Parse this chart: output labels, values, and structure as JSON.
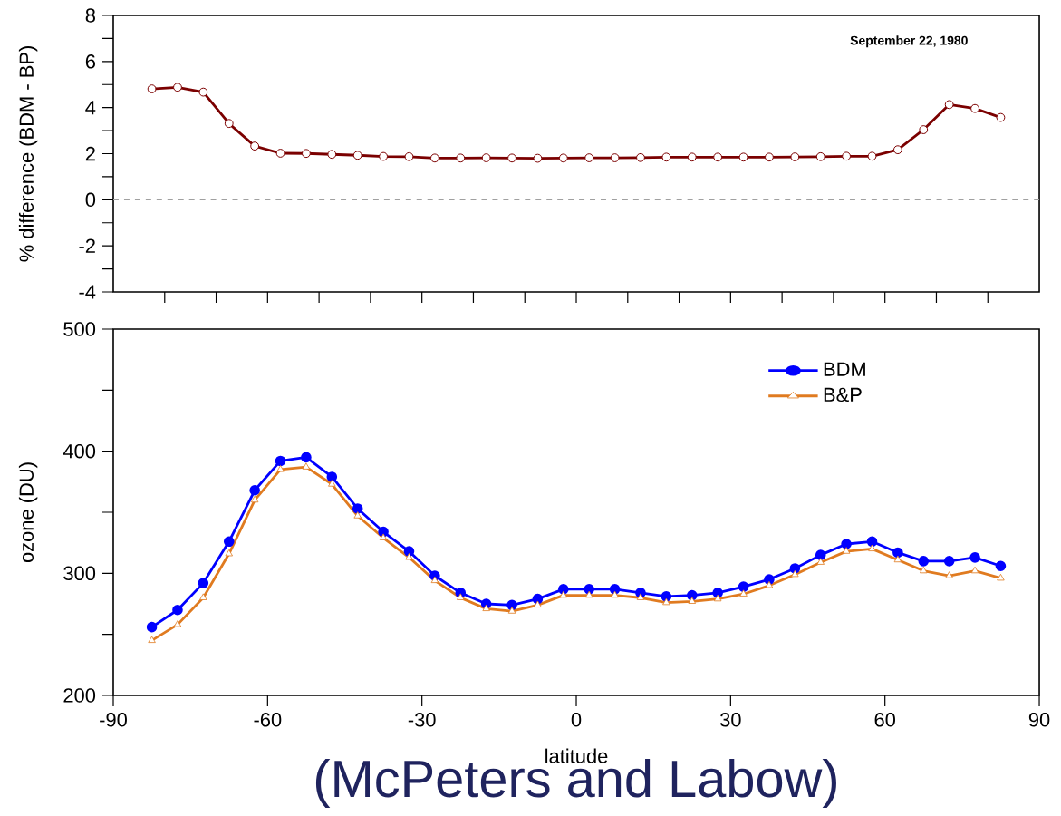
{
  "chart_data": [
    {
      "type": "line",
      "ylabel": "% difference (BDM - BP)",
      "annotations": [
        "September 22, 1980"
      ],
      "xlim": [
        -90,
        90
      ],
      "ylim": [
        -4,
        8
      ],
      "xticks": [
        {
          "value": -80,
          "label": null
        },
        {
          "value": -70,
          "label": null
        },
        {
          "value": -60,
          "label": null
        },
        {
          "value": -50,
          "label": null
        },
        {
          "value": -40,
          "label": null
        },
        {
          "value": -30,
          "label": null
        },
        {
          "value": -20,
          "label": null
        },
        {
          "value": -10,
          "label": null
        },
        {
          "value": 0,
          "label": null
        },
        {
          "value": 10,
          "label": null
        },
        {
          "value": 20,
          "label": null
        },
        {
          "value": 30,
          "label": null
        },
        {
          "value": 40,
          "label": null
        },
        {
          "value": 50,
          "label": null
        },
        {
          "value": 60,
          "label": null
        },
        {
          "value": 70,
          "label": null
        },
        {
          "value": 80,
          "label": null
        }
      ],
      "yticks": [
        -4,
        {
          "value": -3,
          "label": null
        },
        -2,
        {
          "value": -1,
          "label": null
        },
        0,
        {
          "value": 1,
          "label": null
        },
        2,
        {
          "value": 3,
          "label": null
        },
        4,
        {
          "value": 5,
          "label": null
        },
        6,
        {
          "value": 7,
          "label": null
        },
        8
      ],
      "tick_labels": "y",
      "grid": false,
      "legend": false,
      "ref_lines": [
        {
          "axis": "y",
          "value": 0,
          "color": "#a0a0a0",
          "line_style": "dashed"
        }
      ],
      "series": [
        {
          "color": "#7b0000",
          "marker": "circle",
          "x": [
            -82.5,
            -77.5,
            -72.5,
            -67.5,
            -62.5,
            -57.5,
            -52.5,
            -47.5,
            -42.5,
            -37.5,
            -32.5,
            -27.5,
            -22.5,
            -17.5,
            -12.5,
            -7.5,
            -2.5,
            2.5,
            7.5,
            12.5,
            17.5,
            22.5,
            27.5,
            32.5,
            37.5,
            42.5,
            47.5,
            52.5,
            57.5,
            62.5,
            67.5,
            72.5,
            77.5,
            82.5
          ],
          "values": [
            4.81,
            4.88,
            4.67,
            3.31,
            2.33,
            2.02,
            2.01,
            1.97,
            1.93,
            1.88,
            1.87,
            1.81,
            1.81,
            1.82,
            1.81,
            1.8,
            1.81,
            1.82,
            1.82,
            1.83,
            1.85,
            1.85,
            1.85,
            1.85,
            1.85,
            1.86,
            1.87,
            1.89,
            1.89,
            2.17,
            3.04,
            4.13,
            3.96,
            3.57
          ]
        }
      ]
    },
    {
      "type": "line",
      "xlabel": "latitude",
      "ylabel": "ozone (DU)",
      "annotations": [
        "(McPeters and Labow)"
      ],
      "xlim": [
        -90,
        90
      ],
      "ylim": [
        200,
        500
      ],
      "xticks": [
        -90,
        -60,
        -30,
        0,
        30,
        60,
        90
      ],
      "yticks": [
        200,
        {
          "value": 250,
          "label": null
        },
        300,
        {
          "value": 350,
          "label": null
        },
        400,
        {
          "value": 450,
          "label": null
        },
        500
      ],
      "grid": false,
      "legend": "top right",
      "series": [
        {
          "name": "BDM",
          "color": "#0000ff",
          "marker": "circle",
          "x": [
            -82.5,
            -77.5,
            -72.5,
            -67.5,
            -62.5,
            -57.5,
            -52.5,
            -47.5,
            -42.5,
            -37.5,
            -32.5,
            -27.5,
            -22.5,
            -17.5,
            -12.5,
            -7.5,
            -2.5,
            2.5,
            7.5,
            12.5,
            17.5,
            22.5,
            27.5,
            32.5,
            37.5,
            42.5,
            47.5,
            52.5,
            57.5,
            62.5,
            67.5,
            72.5,
            77.5,
            82.5
          ],
          "values": [
            256,
            270,
            292,
            326,
            368,
            392,
            395,
            379,
            353,
            334,
            318,
            298,
            284,
            275,
            274,
            279,
            287,
            287,
            287,
            284,
            281,
            282,
            284,
            289,
            295,
            304,
            315,
            324,
            326,
            317,
            310,
            310,
            313,
            306
          ]
        },
        {
          "name": "B&P",
          "color": "#e07b20",
          "marker": "triangle",
          "x": [
            -82.5,
            -77.5,
            -72.5,
            -67.5,
            -62.5,
            -57.5,
            -52.5,
            -47.5,
            -42.5,
            -37.5,
            -32.5,
            -27.5,
            -22.5,
            -17.5,
            -12.5,
            -7.5,
            -2.5,
            2.5,
            7.5,
            12.5,
            17.5,
            22.5,
            27.5,
            32.5,
            37.5,
            42.5,
            47.5,
            52.5,
            57.5,
            62.5,
            67.5,
            72.5,
            77.5,
            82.5
          ],
          "values": [
            245,
            258,
            280,
            316,
            360,
            385,
            387,
            373,
            347,
            329,
            313,
            294,
            280,
            271,
            269,
            274,
            282,
            282,
            282,
            280,
            276,
            277,
            279,
            283,
            290,
            299,
            309,
            318,
            320,
            311,
            302,
            298,
            302,
            296
          ]
        }
      ]
    }
  ]
}
